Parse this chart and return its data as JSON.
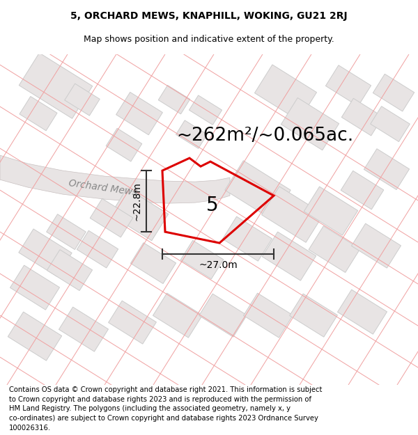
{
  "title_line1": "5, ORCHARD MEWS, KNAPHILL, WOKING, GU21 2RJ",
  "title_line2": "Map shows position and indicative extent of the property.",
  "area_text": "~262m²/~0.065ac.",
  "label_number": "5",
  "dim_height": "~22.8m",
  "dim_width": "~27.0m",
  "road_label": "Orchard Mews",
  "footer_lines": [
    "Contains OS data © Crown copyright and database right 2021. This information is subject",
    "to Crown copyright and database rights 2023 and is reproduced with the permission of",
    "HM Land Registry. The polygons (including the associated geometry, namely x, y",
    "co-ordinates) are subject to Crown copyright and database rights 2023 Ordnance Survey",
    "100026316."
  ],
  "bg_color": "#ffffff",
  "map_bg_color": "#ffffff",
  "plot_border_color": "#dd0000",
  "plot_fill_color": "#ffffff",
  "road_fill_color": "#e8e4e4",
  "road_edge_color": "#c8c0c0",
  "parcel_line_color": "#f0a0a0",
  "building_fill_color": "#e8e4e4",
  "building_edge_color": "#cccccc",
  "dim_color": "#333333",
  "title_fontsize": 10,
  "subtitle_fontsize": 9,
  "footer_fontsize": 7.2,
  "area_fontsize": 19,
  "label_fontsize": 20,
  "road_fontsize": 10,
  "dim_fontsize": 10
}
